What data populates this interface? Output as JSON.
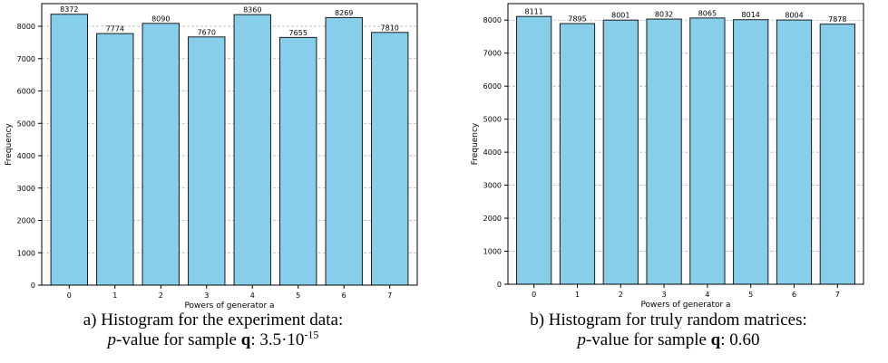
{
  "chart_data": [
    {
      "type": "bar",
      "categories": [
        "0",
        "1",
        "2",
        "3",
        "4",
        "5",
        "6",
        "7"
      ],
      "values": [
        8372,
        7774,
        8090,
        7670,
        8360,
        7655,
        8269,
        7810
      ],
      "xlabel": "Powers of generator a",
      "ylabel": "Frequency",
      "ylim": [
        0,
        8700
      ],
      "yticks": [
        0,
        1000,
        2000,
        3000,
        4000,
        5000,
        6000,
        7000,
        8000
      ],
      "grid": "horizontal dashed",
      "bar_color": "#87ceeb",
      "edge_color": "#1a1a1a"
    },
    {
      "type": "bar",
      "categories": [
        "0",
        "1",
        "2",
        "3",
        "4",
        "5",
        "6",
        "7"
      ],
      "values": [
        8111,
        7895,
        8001,
        8032,
        8065,
        8014,
        8004,
        7878
      ],
      "xlabel": "Powers of generator a",
      "ylabel": "Frequency",
      "ylim": [
        0,
        8500
      ],
      "yticks": [
        0,
        1000,
        2000,
        3000,
        4000,
        5000,
        6000,
        7000,
        8000
      ],
      "grid": "horizontal dashed",
      "bar_color": "#87ceeb",
      "edge_color": "#1a1a1a"
    }
  ],
  "captions": [
    {
      "line1": "a) Histogram for the experiment data:",
      "p_symbol": "p",
      "p_text": "-value for sample ",
      "sample_symbol": "q",
      "value_prefix": ": 3.5·10",
      "value_exponent": "-15"
    },
    {
      "line1": "b) Histogram for truly random matrices:",
      "p_symbol": "p",
      "p_text": "-value for sample ",
      "sample_symbol": "q",
      "value_prefix": ": 0.60",
      "value_exponent": ""
    }
  ]
}
